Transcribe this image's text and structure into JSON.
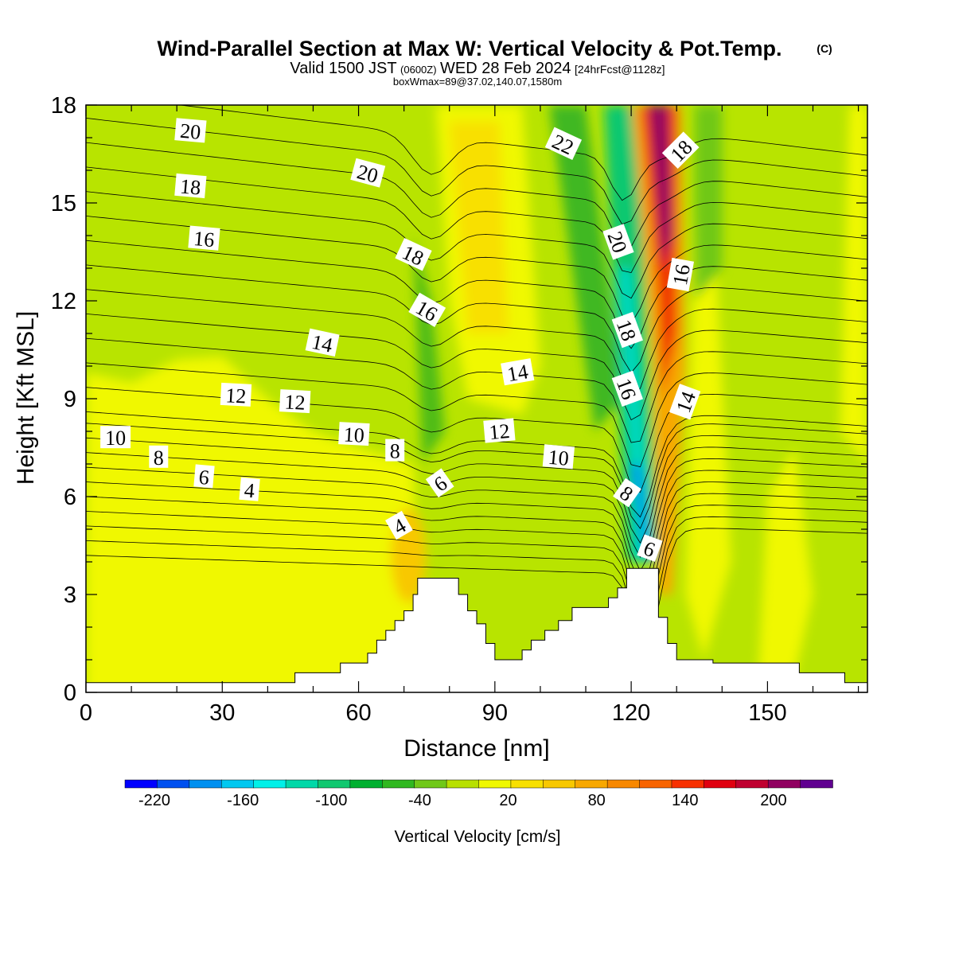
{
  "title": {
    "main": "Wind-Parallel Section at Max W: Vertical Velocity & Pot.Temp.",
    "copyright": "(C)",
    "valid_prefix": "Valid 1500 JST",
    "valid_utc": "(0600Z)",
    "valid_date": "WED 28 Feb 2024",
    "forecast": "[24hrFcst@1128z]",
    "box": "boxWmax=89@37.02,140.07,1580m"
  },
  "chart_data": {
    "type": "heatmap",
    "xlabel": "Distance [nm]",
    "ylabel": "Height [Kft MSL]",
    "xlim": [
      0,
      172
    ],
    "ylim": [
      0,
      18
    ],
    "x_ticks": [
      0,
      30,
      60,
      90,
      120,
      150
    ],
    "y_ticks": [
      0,
      3,
      6,
      9,
      12,
      15,
      18
    ],
    "colorbar": {
      "label": "Vertical Velocity [cm/s]",
      "min": -240,
      "max": 240,
      "step": 20,
      "tick_values": [
        -220,
        -160,
        -100,
        -40,
        20,
        80,
        140,
        200
      ],
      "colors": [
        "#0000ff",
        "#0050f0",
        "#0090f0",
        "#00c8f0",
        "#00f0e8",
        "#00d8a8",
        "#10c870",
        "#00b030",
        "#30b820",
        "#70c818",
        "#b8e000",
        "#f0f800",
        "#f8e000",
        "#f8c800",
        "#f8a800",
        "#f88800",
        "#f86400",
        "#f83000",
        "#e00010",
        "#c00030",
        "#900060",
        "#600090"
      ]
    },
    "terrain": [
      [
        0,
        0.3
      ],
      [
        10,
        0.3
      ],
      [
        20,
        0.3
      ],
      [
        30,
        0.3
      ],
      [
        40,
        0.3
      ],
      [
        45,
        0.3
      ],
      [
        46,
        0.6
      ],
      [
        55,
        0.6
      ],
      [
        56,
        0.9
      ],
      [
        60,
        0.9
      ],
      [
        62,
        1.2
      ],
      [
        64,
        1.6
      ],
      [
        66,
        1.9
      ],
      [
        68,
        2.2
      ],
      [
        70,
        2.5
      ],
      [
        72,
        3.0
      ],
      [
        73,
        3.5
      ],
      [
        80,
        3.5
      ],
      [
        82,
        3.0
      ],
      [
        84,
        2.5
      ],
      [
        86,
        2.1
      ],
      [
        88,
        1.5
      ],
      [
        90,
        1.0
      ],
      [
        94,
        1.0
      ],
      [
        96,
        1.3
      ],
      [
        98,
        1.6
      ],
      [
        101,
        1.9
      ],
      [
        104,
        2.2
      ],
      [
        107,
        2.6
      ],
      [
        112,
        2.6
      ],
      [
        115,
        2.9
      ],
      [
        117,
        3.2
      ],
      [
        119,
        3.8
      ],
      [
        124,
        3.8
      ],
      [
        126,
        2.3
      ],
      [
        128,
        1.5
      ],
      [
        130,
        1.0
      ],
      [
        136,
        1.0
      ],
      [
        138,
        0.9
      ],
      [
        150,
        0.9
      ],
      [
        156,
        0.9
      ],
      [
        157,
        0.6
      ],
      [
        166,
        0.6
      ],
      [
        167,
        0.3
      ],
      [
        172,
        0.3
      ]
    ],
    "contour_labels": [
      {
        "text": "20",
        "x": 23,
        "y": 17.2,
        "rot": 5
      },
      {
        "text": "18",
        "x": 23,
        "y": 15.5,
        "rot": 5
      },
      {
        "text": "16",
        "x": 26,
        "y": 13.9,
        "rot": 5
      },
      {
        "text": "14",
        "x": 52,
        "y": 10.7,
        "rot": 12
      },
      {
        "text": "12",
        "x": 33,
        "y": 9.1,
        "rot": 3
      },
      {
        "text": "12",
        "x": 46,
        "y": 8.9,
        "rot": 3
      },
      {
        "text": "10",
        "x": 6.5,
        "y": 7.8,
        "rot": 0
      },
      {
        "text": "8",
        "x": 16,
        "y": 7.2,
        "rot": 0
      },
      {
        "text": "6",
        "x": 26,
        "y": 6.6,
        "rot": 5
      },
      {
        "text": "4",
        "x": 36,
        "y": 6.2,
        "rot": 5
      },
      {
        "text": "20",
        "x": 62,
        "y": 15.9,
        "rot": 15
      },
      {
        "text": "18",
        "x": 72,
        "y": 13.4,
        "rot": 25
      },
      {
        "text": "16",
        "x": 75,
        "y": 11.7,
        "rot": 30
      },
      {
        "text": "14",
        "x": 95,
        "y": 9.8,
        "rot": -10
      },
      {
        "text": "12",
        "x": 91,
        "y": 8.0,
        "rot": -5
      },
      {
        "text": "10",
        "x": 59,
        "y": 7.9,
        "rot": 3
      },
      {
        "text": "8",
        "x": 68,
        "y": 7.4,
        "rot": 0
      },
      {
        "text": "10",
        "x": 104,
        "y": 7.2,
        "rot": 5
      },
      {
        "text": "6",
        "x": 78,
        "y": 6.4,
        "rot": -35
      },
      {
        "text": "4",
        "x": 69,
        "y": 5.1,
        "rot": -30
      },
      {
        "text": "22",
        "x": 105,
        "y": 16.8,
        "rot": 25
      },
      {
        "text": "20",
        "x": 117,
        "y": 13.8,
        "rot": 70
      },
      {
        "text": "18",
        "x": 119,
        "y": 11.1,
        "rot": 70
      },
      {
        "text": "16",
        "x": 119,
        "y": 9.3,
        "rot": 70
      },
      {
        "text": "8",
        "x": 119,
        "y": 6.1,
        "rot": 35
      },
      {
        "text": "6",
        "x": 124,
        "y": 4.4,
        "rot": 20
      },
      {
        "text": "18",
        "x": 131,
        "y": 16.6,
        "rot": -45
      },
      {
        "text": "16",
        "x": 131,
        "y": 12.8,
        "rot": -80
      },
      {
        "text": "14",
        "x": 132,
        "y": 8.9,
        "rot": -70
      }
    ]
  }
}
